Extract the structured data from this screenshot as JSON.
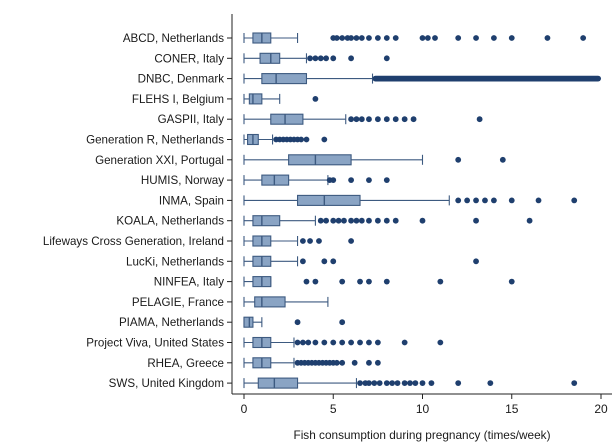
{
  "chart_data": {
    "type": "box",
    "orientation": "horizontal",
    "xlabel": "Fish consumption during pregnancy (times/week)",
    "ylabel": "",
    "title": "",
    "xlim": [
      -0.3,
      20.3
    ],
    "xticks": [
      0,
      5,
      10,
      15,
      20
    ],
    "grid": false,
    "legend": "none",
    "box_color": "#8aa4c4",
    "box_edge_color": "#3d5a80",
    "outlier_color": "#1f3f6e",
    "categories": [
      "ABCD, Netherlands",
      "CONER, Italy",
      "DNBC, Denmark",
      "FLEHS I, Belgium",
      "GASPII, Italy",
      "Generation R, Netherlands",
      "Generation XXI, Portugal",
      "HUMIS, Norway",
      "INMA, Spain",
      "KOALA, Netherlands",
      "Lifeways Cross Generation, Ireland",
      "LucKi, Netherlands",
      "NINFEA, Italy",
      "PELAGIE, France",
      "PIAMA, Netherlands",
      "Project Viva, United States",
      "RHEA, Greece",
      "SWS, United Kingdom"
    ],
    "boxes": [
      {
        "whisker_low": 0,
        "q1": 0.5,
        "median": 1.0,
        "q3": 1.5,
        "whisker_high": 3.0,
        "outliers": [
          5.0,
          5.2,
          5.5,
          5.8,
          6.0,
          6.3,
          6.6,
          7.0,
          7.5,
          8.0,
          8.5,
          10.0,
          10.3,
          10.7,
          12.0,
          13.0,
          14.0,
          15.0,
          17.0,
          19.0
        ]
      },
      {
        "whisker_low": 0,
        "q1": 0.9,
        "median": 1.5,
        "q3": 2.0,
        "whisker_high": 3.5,
        "outliers": [
          3.7,
          4.0,
          4.3,
          4.6,
          5.0,
          6.0,
          8.0
        ]
      },
      {
        "whisker_low": 0,
        "q1": 1.0,
        "median": 1.8,
        "q3": 3.5,
        "whisker_high": 7.2,
        "outlier_band": [
          7.2,
          20.0
        ]
      },
      {
        "whisker_low": 0,
        "q1": 0.3,
        "median": 0.5,
        "q3": 1.0,
        "whisker_high": 2.0,
        "outliers": [
          4.0
        ]
      },
      {
        "whisker_low": 0,
        "q1": 1.5,
        "median": 2.3,
        "q3": 3.3,
        "whisker_high": 5.7,
        "outliers": [
          6.0,
          6.3,
          6.6,
          7.0,
          7.5,
          8.0,
          8.5,
          9.0,
          9.5,
          13.2
        ]
      },
      {
        "whisker_low": 0,
        "q1": 0.2,
        "median": 0.5,
        "q3": 0.8,
        "whisker_high": 1.6,
        "outliers": [
          1.8,
          2.0,
          2.2,
          2.4,
          2.6,
          2.8,
          3.0,
          3.2,
          3.5,
          4.5
        ]
      },
      {
        "whisker_low": 0,
        "q1": 2.5,
        "median": 4.0,
        "q3": 6.0,
        "whisker_high": 10.0,
        "outliers": [
          12.0,
          14.5
        ]
      },
      {
        "whisker_low": 0,
        "q1": 1.0,
        "median": 1.7,
        "q3": 2.5,
        "whisker_high": 4.7,
        "outliers": [
          4.8,
          5.0,
          6.0,
          7.0,
          8.0
        ]
      },
      {
        "whisker_low": 0,
        "q1": 3.0,
        "median": 4.5,
        "q3": 6.5,
        "whisker_high": 11.5,
        "outliers": [
          12.0,
          12.5,
          13.0,
          13.5,
          14.0,
          15.0,
          16.5,
          18.5
        ]
      },
      {
        "whisker_low": 0,
        "q1": 0.5,
        "median": 1.0,
        "q3": 2.0,
        "whisker_high": 4.0,
        "outliers": [
          4.3,
          4.6,
          5.0,
          5.3,
          5.6,
          6.0,
          6.3,
          6.6,
          7.0,
          7.5,
          8.0,
          8.5,
          10.0,
          13.0,
          16.0
        ]
      },
      {
        "whisker_low": 0,
        "q1": 0.5,
        "median": 1.0,
        "q3": 1.5,
        "whisker_high": 3.0,
        "outliers": [
          3.3,
          3.7,
          4.2,
          6.0
        ]
      },
      {
        "whisker_low": 0,
        "q1": 0.5,
        "median": 1.0,
        "q3": 1.5,
        "whisker_high": 3.0,
        "outliers": [
          3.3,
          4.5,
          5.0,
          13.0
        ]
      },
      {
        "whisker_low": 0,
        "q1": 0.5,
        "median": 1.0,
        "q3": 1.5,
        "whisker_high": 1.5,
        "outliers": [
          3.5,
          4.0,
          5.5,
          6.5,
          7.0,
          8.0,
          11.0,
          15.0
        ]
      },
      {
        "whisker_low": 0,
        "q1": 0.6,
        "median": 1.0,
        "q3": 2.3,
        "whisker_high": 4.7,
        "outliers": []
      },
      {
        "whisker_low": 0,
        "q1": 0.0,
        "median": 0.3,
        "q3": 0.5,
        "whisker_high": 1.0,
        "outliers": [
          3.0,
          5.5
        ]
      },
      {
        "whisker_low": 0,
        "q1": 0.5,
        "median": 1.0,
        "q3": 1.5,
        "whisker_high": 2.8,
        "outliers": [
          3.0,
          3.3,
          3.6,
          4.0,
          4.5,
          5.0,
          5.5,
          6.0,
          6.5,
          7.0,
          7.5,
          9.0,
          11.0
        ]
      },
      {
        "whisker_low": 0,
        "q1": 0.5,
        "median": 1.0,
        "q3": 1.5,
        "whisker_high": 2.8,
        "outliers": [
          3.0,
          3.2,
          3.4,
          3.6,
          3.8,
          4.0,
          4.2,
          4.4,
          4.6,
          4.8,
          5.0,
          5.2,
          5.5,
          6.2,
          7.0,
          7.5
        ]
      },
      {
        "whisker_low": 0,
        "q1": 0.8,
        "median": 1.7,
        "q3": 3.0,
        "whisker_high": 6.3,
        "outliers": [
          6.5,
          6.8,
          7.0,
          7.3,
          7.6,
          8.0,
          8.3,
          8.6,
          9.0,
          9.3,
          9.6,
          10.0,
          10.5,
          12.0,
          13.8,
          18.5
        ]
      }
    ]
  }
}
